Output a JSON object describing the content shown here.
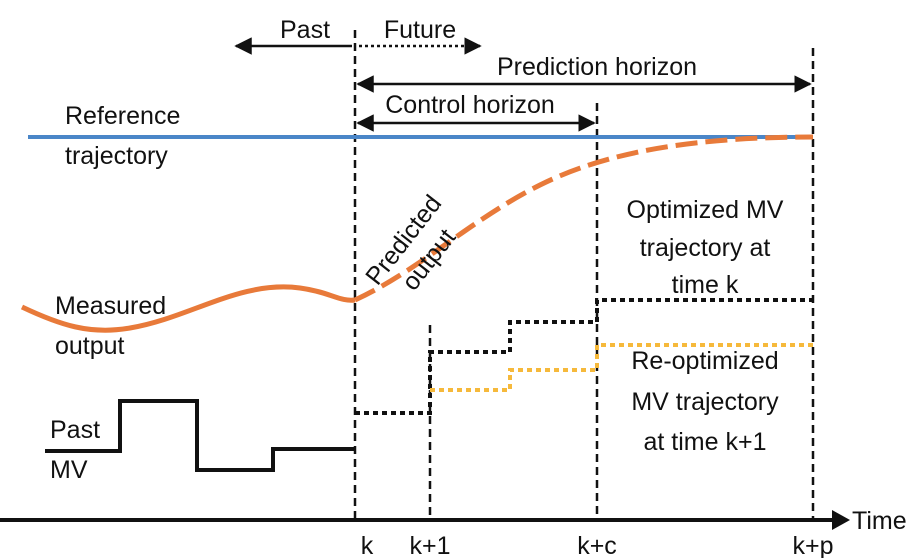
{
  "diagram": {
    "past": "Past",
    "future": "Future",
    "prediction_horizon": "Prediction horizon",
    "control_horizon": "Control horizon",
    "reference": [
      "Reference",
      "trajectory"
    ],
    "predicted": [
      "Predicted",
      "output"
    ],
    "measured": [
      "Measured",
      "output"
    ],
    "optimized": [
      "Optimized MV",
      "trajectory at",
      "time k"
    ],
    "reoptimized": [
      "Re-optimized",
      "MV trajectory",
      "at time k+1"
    ],
    "past_mv": [
      "Past",
      "MV"
    ],
    "time_axis": "Time",
    "ticks": [
      "k",
      "k+1",
      "k+c",
      "k+p"
    ]
  }
}
